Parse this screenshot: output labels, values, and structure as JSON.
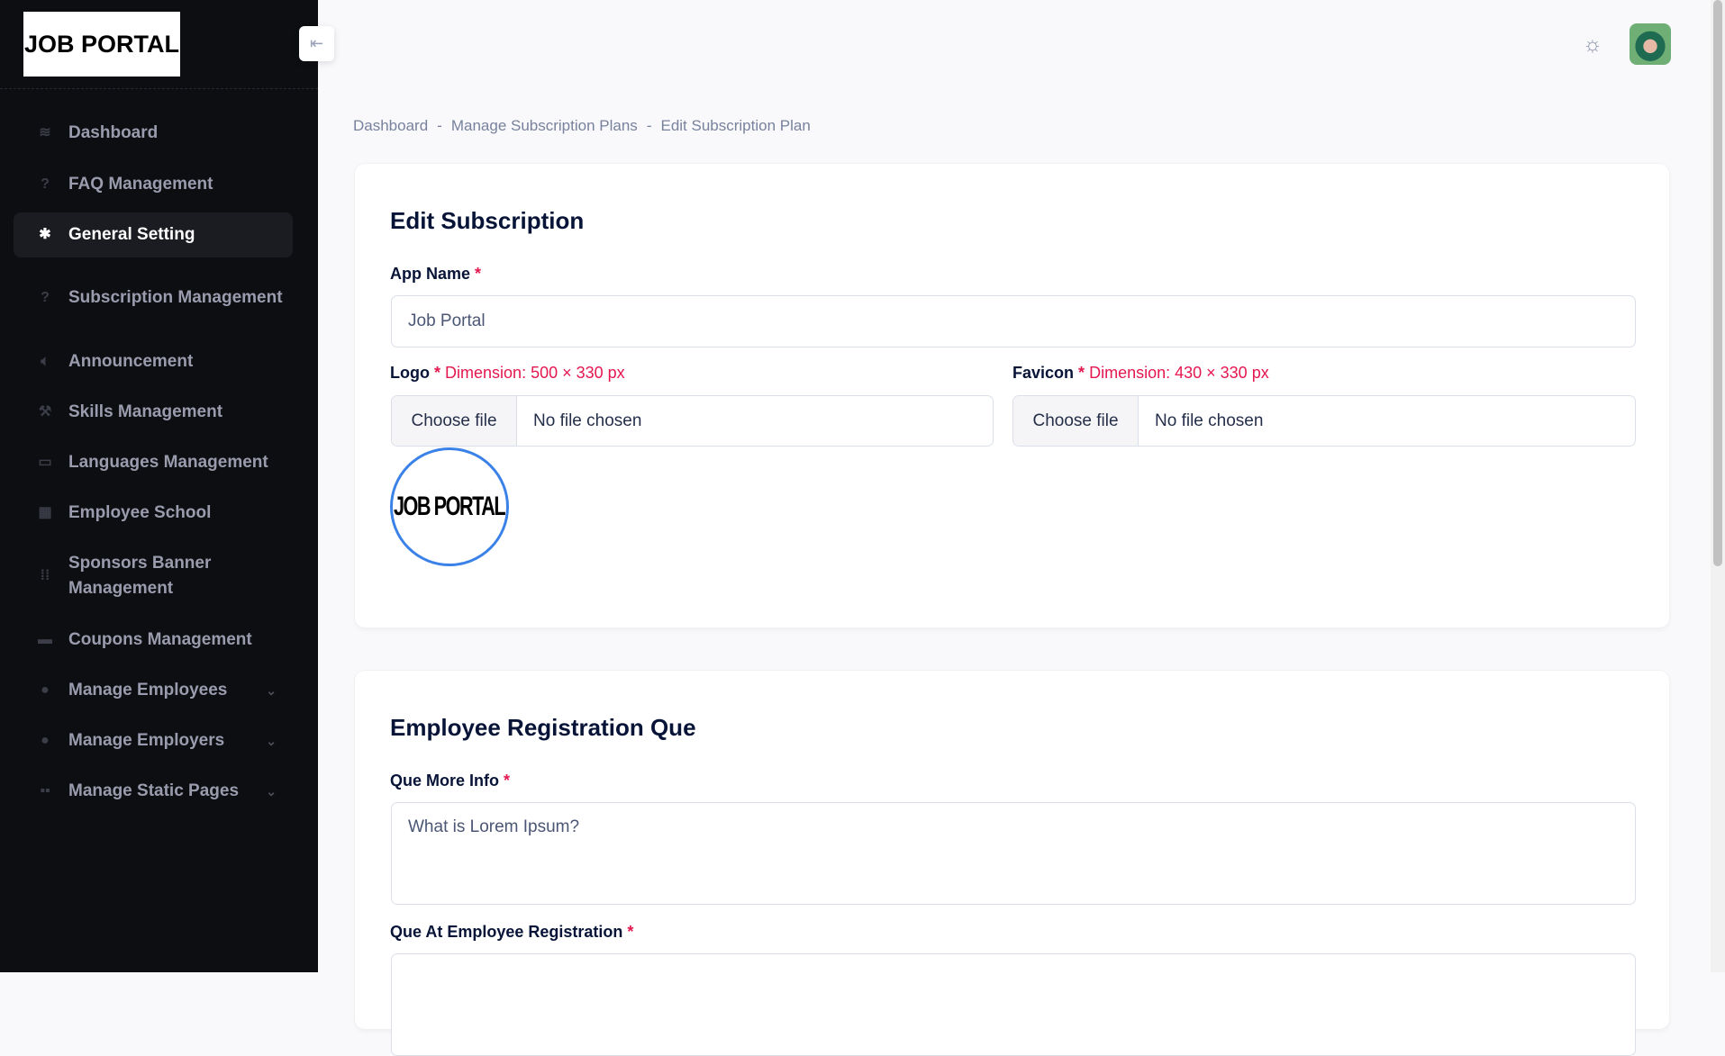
{
  "sidebar": {
    "logo": "JOB PORTAL",
    "items": [
      {
        "label": "Dashboard",
        "icon": "layers-icon"
      },
      {
        "label": "FAQ Management",
        "icon": "question-badge-icon"
      },
      {
        "label": "General Setting",
        "icon": "gear-icon",
        "active": true
      },
      {
        "label": "Subscription Management",
        "icon": "question-badge-icon"
      },
      {
        "label": "Announcement",
        "icon": "speaker-icon"
      },
      {
        "label": "Skills Management",
        "icon": "wrench-icon"
      },
      {
        "label": "Languages Management",
        "icon": "translate-icon"
      },
      {
        "label": "Employee School",
        "icon": "school-icon"
      },
      {
        "label": "Sponsors Banner Management",
        "icon": "dots-grid-icon"
      },
      {
        "label": "Coupons Management",
        "icon": "archive-icon"
      },
      {
        "label": "Manage Employees",
        "icon": "user-icon",
        "expandable": true
      },
      {
        "label": "Manage Employers",
        "icon": "users-icon",
        "expandable": true
      },
      {
        "label": "Manage Static Pages",
        "icon": "grid-icon",
        "expandable": true
      }
    ]
  },
  "header": {
    "collapse_icon": "arrow-left-to-line-icon",
    "theme_icon": "sun-moon-icon"
  },
  "breadcrumb": [
    "Dashboard",
    "Manage Subscription Plans",
    "Edit Subscription Plan"
  ],
  "card1": {
    "title": "Edit Subscription",
    "app_name_label": "App Name",
    "required": "*",
    "app_name_value": "Job Portal",
    "logo_label": "Logo",
    "logo_dim": "Dimension: 500 × 330 px",
    "favicon_label": "Favicon",
    "favicon_dim": "Dimension: 430 × 330 px",
    "choose_file": "Choose file",
    "no_file": "No file chosen",
    "logo_preview": "JOB PORTAL"
  },
  "card2": {
    "title": "Employee Registration Que",
    "que_more_label": "Que More Info",
    "que_more_value": "What is Lorem Ipsum?",
    "que_reg_label": "Que At Employee Registration"
  },
  "colors": {
    "sidebar_bg": "#0d0e12",
    "required": "#e4174f",
    "preview_border": "#3b82e8"
  }
}
